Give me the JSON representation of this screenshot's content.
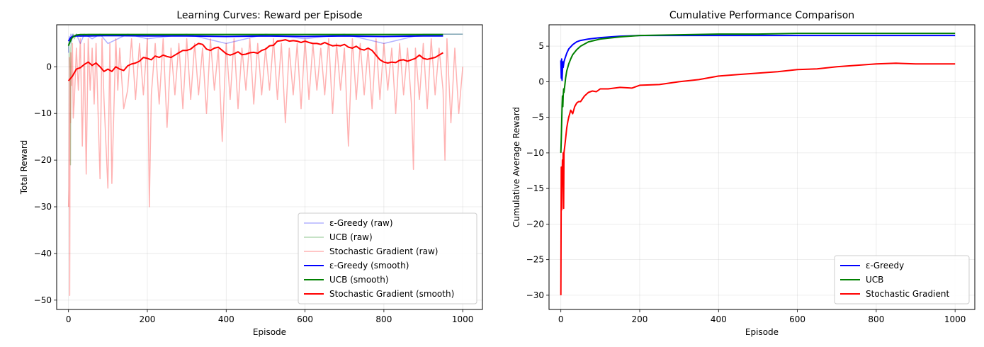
{
  "chart_data": [
    {
      "type": "line",
      "title": "Learning Curves: Reward per Episode",
      "xlabel": "Episode",
      "ylabel": "Total Reward",
      "xlim": [
        -30,
        1050
      ],
      "ylim": [
        -52,
        9
      ],
      "xticks": [
        0,
        200,
        400,
        600,
        800,
        1000
      ],
      "yticks": [
        -50,
        -40,
        -30,
        -20,
        -10,
        0
      ],
      "grid": true,
      "legend_position": "lower-right",
      "series": [
        {
          "name": "ε-Greedy (raw)",
          "color": "#0000ff",
          "opacity": 0.3,
          "width": 1.5,
          "x": [
            0,
            2,
            4,
            6,
            8,
            10,
            15,
            20,
            30,
            40,
            60,
            80,
            100,
            150,
            200,
            300,
            400,
            500,
            600,
            700,
            800,
            900,
            1000
          ],
          "y": [
            3,
            6.5,
            5,
            7,
            5.5,
            7,
            6.5,
            7,
            5,
            7,
            6,
            7,
            5,
            7,
            6,
            7,
            5,
            7,
            6,
            7,
            5,
            7,
            7
          ]
        },
        {
          "name": "UCB (raw)",
          "color": "#008000",
          "opacity": 0.3,
          "width": 1.5,
          "x": [
            0,
            2,
            4,
            5,
            6,
            8,
            10,
            12,
            15,
            20,
            30,
            50,
            100,
            200,
            400,
            600,
            800,
            1000
          ],
          "y": [
            5,
            3,
            -1,
            -21,
            4,
            6,
            6.5,
            7,
            6,
            7,
            6.5,
            7,
            7,
            7,
            7,
            7,
            7,
            7
          ]
        },
        {
          "name": "Stochastic Gradient (raw)",
          "color": "#ff0000",
          "opacity": 0.3,
          "width": 1.5,
          "x": [
            0,
            1,
            2,
            3,
            4,
            5,
            6,
            8,
            10,
            12,
            15,
            20,
            25,
            30,
            35,
            40,
            45,
            50,
            55,
            60,
            65,
            70,
            80,
            85,
            90,
            100,
            105,
            110,
            120,
            125,
            130,
            140,
            150,
            160,
            170,
            180,
            190,
            200,
            205,
            210,
            220,
            230,
            240,
            250,
            260,
            270,
            280,
            290,
            300,
            310,
            320,
            330,
            340,
            350,
            360,
            370,
            380,
            390,
            400,
            410,
            420,
            430,
            440,
            450,
            460,
            470,
            480,
            490,
            500,
            510,
            520,
            530,
            540,
            550,
            560,
            570,
            580,
            590,
            600,
            610,
            620,
            630,
            640,
            650,
            660,
            670,
            680,
            690,
            700,
            710,
            720,
            730,
            740,
            750,
            760,
            770,
            780,
            790,
            800,
            810,
            820,
            830,
            840,
            850,
            860,
            870,
            875,
            880,
            890,
            900,
            910,
            920,
            930,
            940,
            950,
            955,
            960,
            970,
            980,
            990,
            1000
          ],
          "y": [
            -30,
            -26,
            2,
            -49,
            -10,
            -12,
            3,
            -4,
            5,
            -11,
            -7,
            4,
            -5,
            6,
            -17,
            5,
            -23,
            6,
            -5,
            4,
            -8,
            5,
            -24,
            6,
            -7,
            -26,
            5,
            -25,
            6,
            -5,
            4,
            -9,
            -5,
            6,
            -7,
            5,
            -6,
            6,
            -30,
            -6,
            5,
            -8,
            6,
            -13,
            4,
            -6,
            5,
            -9,
            6,
            -7,
            5,
            -6,
            4,
            -10,
            6,
            -5,
            4,
            -16,
            5,
            -7,
            6,
            -9,
            4,
            -5,
            6,
            -8,
            5,
            -6,
            4,
            -5,
            6,
            -7,
            5,
            -12,
            4,
            -6,
            5,
            -9,
            6,
            -7,
            5,
            -5,
            4,
            -6,
            6,
            -10,
            5,
            -5,
            4,
            -17,
            6,
            -7,
            5,
            -6,
            4,
            -9,
            6,
            -7,
            5,
            -5,
            4,
            -10,
            5,
            -6,
            4,
            -8,
            -22,
            4,
            -7,
            5,
            -9,
            6,
            -6,
            4,
            -5,
            -20,
            6,
            -12,
            4,
            -10,
            0
          ]
        },
        {
          "name": "ε-Greedy (smooth)",
          "color": "#0000ff",
          "opacity": 1,
          "width": 2,
          "x": [
            0,
            5,
            10,
            20,
            50,
            100,
            200,
            300,
            400,
            500,
            600,
            700,
            800,
            900,
            950
          ],
          "y": [
            5.5,
            6.2,
            6.5,
            6.6,
            6.6,
            6.7,
            6.6,
            6.6,
            6.5,
            6.6,
            6.5,
            6.6,
            6.5,
            6.6,
            6.6
          ]
        },
        {
          "name": "UCB (smooth)",
          "color": "#008000",
          "opacity": 1,
          "width": 2,
          "x": [
            0,
            3,
            6,
            10,
            15,
            20,
            30,
            50,
            100,
            200,
            300,
            400,
            500,
            600,
            700,
            800,
            900,
            950
          ],
          "y": [
            4.5,
            5.2,
            5.8,
            6.3,
            6.6,
            6.8,
            6.9,
            6.9,
            6.9,
            6.9,
            6.9,
            6.9,
            6.9,
            6.9,
            6.9,
            6.9,
            6.9,
            6.9
          ]
        },
        {
          "name": "Stochastic Gradient (smooth)",
          "color": "#ff0000",
          "opacity": 1,
          "width": 2,
          "x": [
            0,
            10,
            20,
            30,
            40,
            50,
            60,
            70,
            80,
            90,
            100,
            110,
            120,
            130,
            140,
            150,
            160,
            170,
            180,
            190,
            200,
            210,
            220,
            230,
            240,
            250,
            260,
            270,
            280,
            290,
            300,
            310,
            320,
            330,
            340,
            350,
            360,
            370,
            380,
            390,
            400,
            410,
            420,
            430,
            440,
            450,
            460,
            470,
            480,
            490,
            500,
            510,
            520,
            530,
            540,
            550,
            560,
            570,
            580,
            590,
            600,
            610,
            620,
            630,
            640,
            650,
            660,
            670,
            680,
            690,
            700,
            710,
            720,
            730,
            740,
            750,
            760,
            770,
            780,
            790,
            800,
            810,
            820,
            830,
            840,
            850,
            860,
            870,
            880,
            890,
            900,
            910,
            920,
            930,
            940,
            950
          ],
          "y": [
            -3,
            -2,
            -0.5,
            -0.2,
            0.5,
            1,
            0.3,
            0.8,
            0,
            -1,
            -0.5,
            -1,
            0,
            -0.5,
            -0.8,
            0.2,
            0.6,
            0.8,
            1.2,
            2,
            1.8,
            1.5,
            2.3,
            2,
            2.5,
            2.2,
            2,
            2.5,
            3,
            3.5,
            3.5,
            3.8,
            4.5,
            5,
            4.8,
            3.8,
            3.5,
            4,
            4.2,
            3.5,
            2.8,
            2.5,
            2.8,
            3.2,
            2.6,
            2.7,
            3,
            3.1,
            2.9,
            3.5,
            3.8,
            4.5,
            4.6,
            5.5,
            5.6,
            5.8,
            5.5,
            5.6,
            5.5,
            5.2,
            5.5,
            5.2,
            5,
            5,
            4.8,
            5.2,
            4.8,
            4.5,
            4.6,
            4.5,
            4.8,
            4.2,
            4,
            4.4,
            3.8,
            3.6,
            4,
            3.5,
            2.5,
            1.5,
            1,
            0.8,
            1,
            0.9,
            1.4,
            1.5,
            1.2,
            1.5,
            1.8,
            2.5,
            1.8,
            1.6,
            1.8,
            2,
            2.5,
            3
          ]
        }
      ]
    },
    {
      "type": "line",
      "title": "Cumulative Performance Comparison",
      "xlabel": "Episode",
      "ylabel": "Cumulative Average Reward",
      "xlim": [
        -30,
        1050
      ],
      "ylim": [
        -32,
        8
      ],
      "xticks": [
        0,
        200,
        400,
        600,
        800,
        1000
      ],
      "yticks": [
        -30,
        -25,
        -20,
        -15,
        -10,
        -5,
        0,
        5
      ],
      "grid": true,
      "legend_position": "lower-right",
      "series": [
        {
          "name": "ε-Greedy",
          "color": "#0000ff",
          "opacity": 1,
          "width": 2,
          "x": [
            0,
            1,
            2,
            3,
            4,
            5,
            6,
            8,
            10,
            15,
            20,
            30,
            40,
            50,
            70,
            100,
            150,
            200,
            300,
            400,
            500,
            600,
            700,
            800,
            900,
            1000
          ],
          "y": [
            3,
            0.5,
            3.2,
            0.2,
            1.5,
            2.8,
            2,
            2.8,
            3.2,
            4,
            4.6,
            5.2,
            5.6,
            5.8,
            6.0,
            6.2,
            6.4,
            6.5,
            6.5,
            6.5,
            6.5,
            6.5,
            6.5,
            6.5,
            6.5,
            6.5
          ]
        },
        {
          "name": "UCB",
          "color": "#008000",
          "opacity": 1,
          "width": 2,
          "x": [
            0,
            1,
            2,
            3,
            4,
            5,
            6,
            7,
            8,
            10,
            12,
            15,
            20,
            25,
            30,
            40,
            50,
            70,
            100,
            150,
            200,
            300,
            400,
            500,
            600,
            700,
            800,
            900,
            1000
          ],
          "y": [
            -10,
            -8,
            -6,
            -3.5,
            -2,
            -3.5,
            -2,
            -1,
            -1.5,
            -0.5,
            0.5,
            1.5,
            2.5,
            3.2,
            3.8,
            4.5,
            5,
            5.6,
            6,
            6.3,
            6.5,
            6.6,
            6.7,
            6.7,
            6.8,
            6.8,
            6.8,
            6.8,
            6.8
          ]
        },
        {
          "name": "Stochastic Gradient",
          "color": "#ff0000",
          "opacity": 1,
          "width": 2,
          "x": [
            0,
            1,
            2,
            3,
            4,
            5,
            6,
            7,
            8,
            10,
            12,
            15,
            18,
            20,
            25,
            30,
            35,
            40,
            45,
            50,
            60,
            70,
            80,
            90,
            100,
            120,
            150,
            180,
            200,
            250,
            300,
            350,
            400,
            450,
            500,
            550,
            600,
            650,
            700,
            750,
            800,
            850,
            900,
            950,
            1000
          ],
          "y": [
            -30,
            -12,
            -18,
            -14,
            -11,
            -12,
            -10,
            -17.8,
            -10,
            -9,
            -8,
            -6.5,
            -5.5,
            -5,
            -4,
            -4.5,
            -3.5,
            -3,
            -2.8,
            -2.8,
            -2,
            -1.5,
            -1.3,
            -1.4,
            -1,
            -1,
            -0.8,
            -0.9,
            -0.5,
            -0.4,
            0,
            0.3,
            0.8,
            1,
            1.2,
            1.4,
            1.7,
            1.8,
            2.1,
            2.3,
            2.5,
            2.6,
            2.5,
            2.5,
            2.5
          ]
        }
      ]
    }
  ]
}
